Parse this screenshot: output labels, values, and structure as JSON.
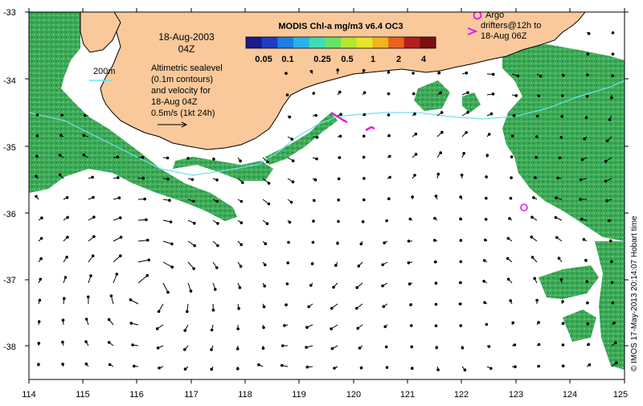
{
  "map": {
    "date_label": "18-Aug-2003",
    "time_label": "04Z",
    "contour_label": "200m",
    "altimetry_lines": [
      "Altimetric sealevel",
      "(0.1m contours)",
      "and velocity for",
      "18-Aug 04Z",
      "0.5m/s (1kt 24h)"
    ],
    "colorbar": {
      "title": "MODIS Chl-a mg/m3 v6.4 OC3",
      "tick_labels": [
        "0.05",
        "0.1",
        "0.25",
        "0.5",
        "1",
        "2",
        "4"
      ],
      "colors": [
        "#1a1a8c",
        "#1e3cc8",
        "#1e7ee6",
        "#28b4e6",
        "#3cdcb4",
        "#64e664",
        "#b4e632",
        "#e6e628",
        "#f0b41e",
        "#e6641e",
        "#b41e1e",
        "#7a1010"
      ]
    },
    "drifter_legend_lines": [
      "Argo",
      "drifters@12h to",
      "18-Aug 06Z"
    ],
    "credit": "© IMOS 17-May-2013 20:14:07 Hobart time",
    "x_ticks": [
      "114",
      "115",
      "116",
      "117",
      "118",
      "119",
      "120",
      "121",
      "122",
      "123",
      "124",
      "125"
    ],
    "y_ticks": [
      "-33",
      "-34",
      "-35",
      "-36",
      "-37",
      "-38"
    ],
    "colors": {
      "land": "#f9c99b",
      "coast": "#000000",
      "contour": "#6fe0f0",
      "chl_green": "#44b85a",
      "drifter": "#e020e0",
      "arrow": "#000000"
    }
  }
}
